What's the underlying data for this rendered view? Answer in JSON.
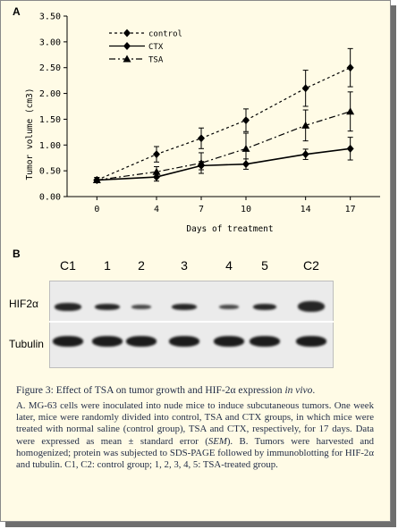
{
  "panel_a_label": "A",
  "panel_b_label": "B",
  "chart_data": {
    "type": "line",
    "xlabel": "Days of treatment",
    "ylabel": "Tumor volume (cm3)",
    "categories": [
      "0",
      "4",
      "7",
      "10",
      "14",
      "17"
    ],
    "x": [
      0,
      4,
      7,
      10,
      14,
      17
    ],
    "yticks": [
      "0.00",
      "0.50",
      "1.00",
      "1.50",
      "2.00",
      "2.50",
      "3.00",
      "3.50"
    ],
    "ylim": [
      0,
      3.5
    ],
    "grid": false,
    "legend_position": "top-left",
    "series": [
      {
        "name": "control",
        "marker": "diamond",
        "dash": "dashed",
        "values": [
          0.32,
          0.82,
          1.13,
          1.48,
          2.1,
          2.5
        ],
        "errors": [
          0.05,
          0.15,
          0.2,
          0.22,
          0.35,
          0.37
        ]
      },
      {
        "name": "CTX",
        "marker": "diamond",
        "dash": "solid",
        "values": [
          0.32,
          0.38,
          0.6,
          0.63,
          0.82,
          0.93
        ],
        "errors": [
          0.05,
          0.08,
          0.08,
          0.1,
          0.1,
          0.22
        ]
      },
      {
        "name": "TSA",
        "marker": "triangle",
        "dash": "dashdot",
        "values": [
          0.32,
          0.48,
          0.65,
          0.93,
          1.38,
          1.65
        ],
        "errors": [
          0.05,
          0.1,
          0.2,
          0.3,
          0.3,
          0.38
        ]
      }
    ]
  },
  "blot": {
    "lanes": [
      "C1",
      "1",
      "2",
      "3",
      "4",
      "5",
      "C2"
    ],
    "rows": [
      "HIF2α",
      "Tubulin"
    ]
  },
  "caption": {
    "title_prefix": "Figure 3:",
    "title_text": "Effect of TSA on tumor growth and HIF-2α expression",
    "title_italic": "in vivo",
    "title_end": ".",
    "body_1": "A. MG-63 cells were inoculated into nude mice to induce subcutaneous tumors. One week later, mice were randomly divided into control, TSA and CTX groups, in which mice were treated with normal saline (control group), TSA and CTX, respectively, for 17 days. Data were expressed as mean ± standard error (",
    "body_italic": "SEM",
    "body_2": ").  B. Tumors were harvested and homogenized; protein was subjected to SDS-PAGE followed by immunoblotting for HIF-2α and tubulin. C1, C2: control group; 1, 2, 3, 4, 5: TSA-treated group."
  }
}
